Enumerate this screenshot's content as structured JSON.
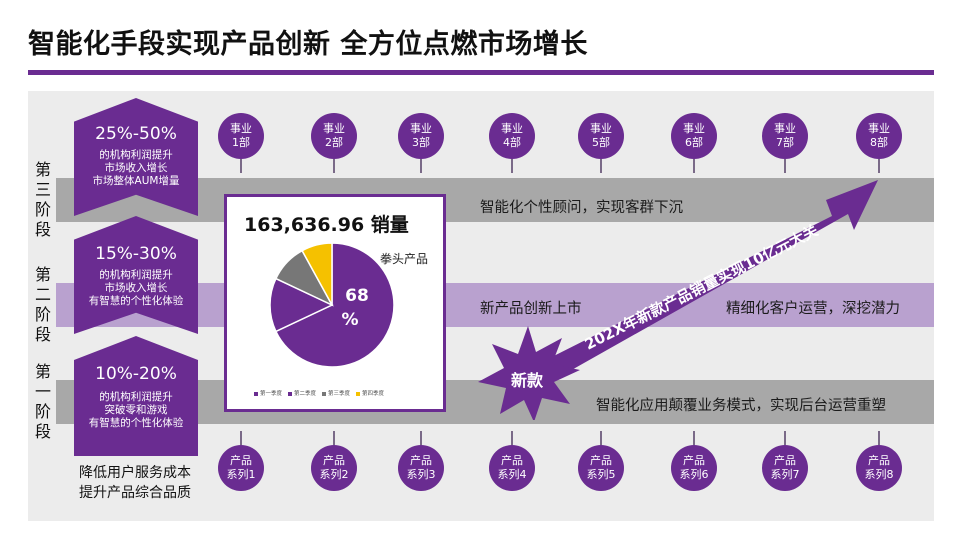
{
  "title": "智能化手段实现产品创新 全方位点燃市场增长",
  "bands": {
    "top": "智能化个性顾问，实现客群下沉",
    "mid_left": "新产品创新上市",
    "mid_right": "精细化客户运营，深挖潜力",
    "bot": "智能化应用颠覆业务模式，实现后台运营重塑"
  },
  "stages": {
    "third": "第三阶段",
    "second": "第二阶段",
    "first": "第一阶段"
  },
  "chevrons": [
    {
      "pct": "25%-50%",
      "lines": [
        "的机构利润提升",
        "市场收入增长",
        "市场整体AUM增量"
      ]
    },
    {
      "pct": "15%-30%",
      "lines": [
        "的机构利润提升",
        "市场收入增长",
        "有智慧的个性化体验"
      ]
    },
    {
      "pct": "10%-20%",
      "lines": [
        "的机构利润提升",
        "突破零和游戏",
        "有智慧的个性化体验"
      ]
    }
  ],
  "bottom_left": [
    "降低用户服务成本",
    "提升产品综合品质"
  ],
  "departments": [
    {
      "l1": "事业",
      "l2": "1部"
    },
    {
      "l1": "事业",
      "l2": "2部"
    },
    {
      "l1": "事业",
      "l2": "3部"
    },
    {
      "l1": "事业",
      "l2": "4部"
    },
    {
      "l1": "事业",
      "l2": "5部"
    },
    {
      "l1": "事业",
      "l2": "6部"
    },
    {
      "l1": "事业",
      "l2": "7部"
    },
    {
      "l1": "事业",
      "l2": "8部"
    }
  ],
  "products": [
    {
      "l1": "产品",
      "l2": "系列1"
    },
    {
      "l1": "产品",
      "l2": "系列2"
    },
    {
      "l1": "产品",
      "l2": "系列3"
    },
    {
      "l1": "产品",
      "l2": "系列4"
    },
    {
      "l1": "产品",
      "l2": "系列5"
    },
    {
      "l1": "产品",
      "l2": "系列6"
    },
    {
      "l1": "产品",
      "l2": "系列7"
    },
    {
      "l1": "产品",
      "l2": "系列8"
    }
  ],
  "sales": "163,636.96 销量",
  "fist_product": "拳头产品",
  "burst_label": "新款",
  "arrow_text": "202X年新款产品销量实现10亿元大关",
  "colors": {
    "accent": "#6a2c91",
    "band_gray": "#a8a8a8",
    "band_purple": "#b9a1cf",
    "yellow": "#f5c100",
    "gray_slice": "#777777"
  },
  "chart_data": {
    "type": "pie",
    "categories": [
      "第一季度",
      "第二季度",
      "第三季度",
      "第四季度"
    ],
    "values": [
      68,
      14,
      10,
      8
    ],
    "colors": [
      "#6a2c91",
      "#6a2c91",
      "#777777",
      "#f5c100"
    ],
    "label": "68%",
    "legend_position": "bottom"
  }
}
